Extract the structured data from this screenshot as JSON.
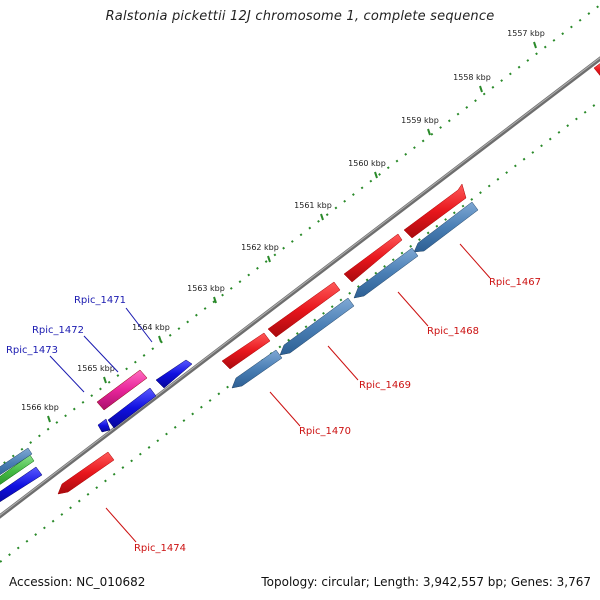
{
  "title": "Ralstonia pickettii 12J chromosome 1, complete sequence",
  "footer": {
    "accession": "Accession: NC_010682",
    "summary": "Topology: circular; Length: 3,942,557 bp; Genes: 3,767"
  },
  "colors": {
    "backbone": "#808080",
    "tick": "#2a8a2a",
    "forward_cds": "#e8161c",
    "reverse_cds": "#4a7fb5",
    "forward_gene_blue": "#1010e0",
    "pink": "#e8259a",
    "green": "#44bb44",
    "label_forward": "#1a1ab0",
    "label_reverse": "#cc1111"
  },
  "ticks": [
    {
      "label": "1557 kbp"
    },
    {
      "label": "1558 kbp"
    },
    {
      "label": "1559 kbp"
    },
    {
      "label": "1560 kbp"
    },
    {
      "label": "1561 kbp"
    },
    {
      "label": "1562 kbp"
    },
    {
      "label": "1563 kbp"
    },
    {
      "label": "1564 kbp"
    },
    {
      "label": "1565 kbp"
    },
    {
      "label": "1566 kbp"
    }
  ],
  "gene_labels": [
    {
      "text": "Rpic_1471",
      "strand": "forward"
    },
    {
      "text": "Rpic_1472",
      "strand": "forward"
    },
    {
      "text": "Rpic_1473",
      "strand": "forward"
    },
    {
      "text": "Rpic_1467",
      "strand": "reverse"
    },
    {
      "text": "Rpic_1468",
      "strand": "reverse"
    },
    {
      "text": "Rpic_1469",
      "strand": "reverse"
    },
    {
      "text": "Rpic_1470",
      "strand": "reverse"
    },
    {
      "text": "Rpic_1474",
      "strand": "reverse"
    }
  ]
}
